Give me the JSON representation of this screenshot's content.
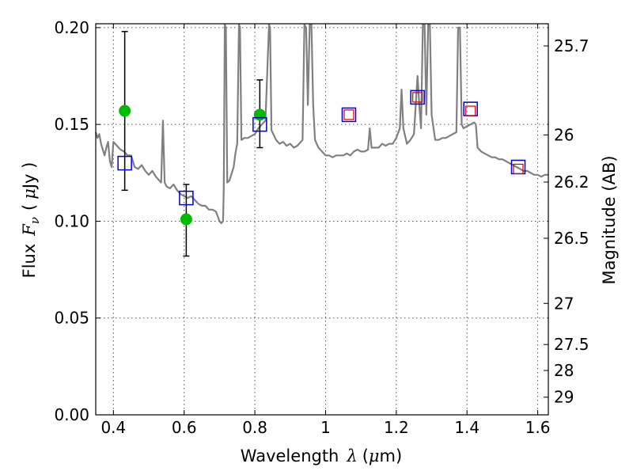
{
  "chart_data": {
    "type": "scatter",
    "title": "",
    "xlabel": {
      "prefix": "Wavelength",
      "symbol": "λ",
      "unit_open": "(",
      "unit_mu": "μ",
      "unit_rest": "m)"
    },
    "ylabel": {
      "prefix": "Flux",
      "symbol": "F",
      "sub": "ν",
      "unit_open": "(",
      "unit_mu": "μ",
      "unit_rest": "Jy )"
    },
    "y2label": "Magnitude (AB)",
    "xlim": [
      0.35,
      1.63
    ],
    "ylim": [
      0.0,
      0.202
    ],
    "grid": true,
    "xticks": [
      {
        "value": 0.4,
        "label": "0.4"
      },
      {
        "value": 0.6,
        "label": "0.6"
      },
      {
        "value": 0.8,
        "label": "0.8"
      },
      {
        "value": 1.0,
        "label": "1"
      },
      {
        "value": 1.2,
        "label": "1.2"
      },
      {
        "value": 1.4,
        "label": "1.4"
      },
      {
        "value": 1.6,
        "label": "1.6"
      }
    ],
    "yticks": [
      {
        "value": 0.0,
        "label": "0.00"
      },
      {
        "value": 0.05,
        "label": "0.05"
      },
      {
        "value": 0.1,
        "label": "0.10"
      },
      {
        "value": 0.15,
        "label": "0.15"
      },
      {
        "value": 0.2,
        "label": "0.20"
      }
    ],
    "y2ticks": [
      {
        "value": 25.7,
        "label": "25.7"
      },
      {
        "value": 26.0,
        "label": "26"
      },
      {
        "value": 26.2,
        "label": "26.2"
      },
      {
        "value": 26.5,
        "label": "26.5"
      },
      {
        "value": 27.0,
        "label": "27"
      },
      {
        "value": 27.5,
        "label": "27.5"
      },
      {
        "value": 28.0,
        "label": "28"
      },
      {
        "value": 29.0,
        "label": "29"
      }
    ],
    "colors": {
      "model": "#808080",
      "observed": "#00bb00",
      "model_box": "#0000cc",
      "predicted": "#cc0000",
      "grid": "#555555"
    },
    "series": [
      {
        "style": "line",
        "points": [
          [
            0.35,
            0.146
          ],
          [
            0.355,
            0.143
          ],
          [
            0.36,
            0.145
          ],
          [
            0.365,
            0.14
          ],
          [
            0.37,
            0.137
          ],
          [
            0.375,
            0.134
          ],
          [
            0.38,
            0.138
          ],
          [
            0.385,
            0.141
          ],
          [
            0.39,
            0.131
          ],
          [
            0.395,
            0.128
          ],
          [
            0.4,
            0.141
          ],
          [
            0.41,
            0.139
          ],
          [
            0.42,
            0.137
          ],
          [
            0.43,
            0.136
          ],
          [
            0.44,
            0.134
          ],
          [
            0.45,
            0.134
          ],
          [
            0.46,
            0.128
          ],
          [
            0.47,
            0.127
          ],
          [
            0.48,
            0.129
          ],
          [
            0.49,
            0.126
          ],
          [
            0.5,
            0.124
          ],
          [
            0.51,
            0.126
          ],
          [
            0.52,
            0.123
          ],
          [
            0.53,
            0.121
          ],
          [
            0.535,
            0.12
          ],
          [
            0.54,
            0.152
          ],
          [
            0.545,
            0.12
          ],
          [
            0.55,
            0.118
          ],
          [
            0.56,
            0.117
          ],
          [
            0.57,
            0.119
          ],
          [
            0.58,
            0.116
          ],
          [
            0.59,
            0.114
          ],
          [
            0.6,
            0.113
          ],
          [
            0.61,
            0.112
          ],
          [
            0.62,
            0.113
          ],
          [
            0.63,
            0.111
          ],
          [
            0.64,
            0.109
          ],
          [
            0.65,
            0.108
          ],
          [
            0.66,
            0.108
          ],
          [
            0.67,
            0.106
          ],
          [
            0.68,
            0.106
          ],
          [
            0.69,
            0.105
          ],
          [
            0.7,
            0.1
          ],
          [
            0.705,
            0.099
          ],
          [
            0.71,
            0.1
          ],
          [
            0.712,
            0.117
          ],
          [
            0.715,
            0.202
          ],
          [
            0.718,
            0.2
          ],
          [
            0.722,
            0.12
          ],
          [
            0.728,
            0.121
          ],
          [
            0.735,
            0.125
          ],
          [
            0.74,
            0.128
          ],
          [
            0.745,
            0.135
          ],
          [
            0.75,
            0.14
          ],
          [
            0.755,
            0.202
          ],
          [
            0.758,
            0.2
          ],
          [
            0.762,
            0.142
          ],
          [
            0.77,
            0.143
          ],
          [
            0.78,
            0.143
          ],
          [
            0.79,
            0.144
          ],
          [
            0.8,
            0.145
          ],
          [
            0.81,
            0.148
          ],
          [
            0.82,
            0.15
          ],
          [
            0.83,
            0.152
          ],
          [
            0.84,
            0.202
          ],
          [
            0.843,
            0.2
          ],
          [
            0.847,
            0.147
          ],
          [
            0.86,
            0.142
          ],
          [
            0.87,
            0.14
          ],
          [
            0.88,
            0.141
          ],
          [
            0.89,
            0.139
          ],
          [
            0.9,
            0.14
          ],
          [
            0.91,
            0.138
          ],
          [
            0.92,
            0.139
          ],
          [
            0.93,
            0.141
          ],
          [
            0.935,
            0.142
          ],
          [
            0.94,
            0.202
          ],
          [
            0.945,
            0.2
          ],
          [
            0.95,
            0.16
          ],
          [
            0.955,
            0.202
          ],
          [
            0.96,
            0.202
          ],
          [
            0.965,
            0.16
          ],
          [
            0.97,
            0.142
          ],
          [
            0.98,
            0.138
          ],
          [
            0.99,
            0.136
          ],
          [
            1.0,
            0.134
          ],
          [
            1.01,
            0.134
          ],
          [
            1.02,
            0.133
          ],
          [
            1.03,
            0.134
          ],
          [
            1.04,
            0.134
          ],
          [
            1.05,
            0.134
          ],
          [
            1.06,
            0.135
          ],
          [
            1.07,
            0.134
          ],
          [
            1.08,
            0.136
          ],
          [
            1.09,
            0.137
          ],
          [
            1.1,
            0.136
          ],
          [
            1.11,
            0.136
          ],
          [
            1.12,
            0.137
          ],
          [
            1.125,
            0.148
          ],
          [
            1.13,
            0.138
          ],
          [
            1.14,
            0.138
          ],
          [
            1.15,
            0.138
          ],
          [
            1.16,
            0.14
          ],
          [
            1.17,
            0.139
          ],
          [
            1.18,
            0.14
          ],
          [
            1.19,
            0.14
          ],
          [
            1.2,
            0.143
          ],
          [
            1.21,
            0.148
          ],
          [
            1.215,
            0.168
          ],
          [
            1.22,
            0.148
          ],
          [
            1.23,
            0.14
          ],
          [
            1.24,
            0.142
          ],
          [
            1.25,
            0.145
          ],
          [
            1.255,
            0.16
          ],
          [
            1.26,
            0.175
          ],
          [
            1.265,
            0.16
          ],
          [
            1.27,
            0.148
          ],
          [
            1.275,
            0.202
          ],
          [
            1.28,
            0.202
          ],
          [
            1.285,
            0.155
          ],
          [
            1.29,
            0.202
          ],
          [
            1.295,
            0.202
          ],
          [
            1.3,
            0.155
          ],
          [
            1.31,
            0.142
          ],
          [
            1.32,
            0.142
          ],
          [
            1.33,
            0.143
          ],
          [
            1.34,
            0.143
          ],
          [
            1.35,
            0.144
          ],
          [
            1.36,
            0.145
          ],
          [
            1.37,
            0.146
          ],
          [
            1.375,
            0.2
          ],
          [
            1.38,
            0.2
          ],
          [
            1.385,
            0.15
          ],
          [
            1.39,
            0.148
          ],
          [
            1.4,
            0.149
          ],
          [
            1.41,
            0.15
          ],
          [
            1.42,
            0.151
          ],
          [
            1.425,
            0.15
          ],
          [
            1.43,
            0.138
          ],
          [
            1.44,
            0.136
          ],
          [
            1.45,
            0.135
          ],
          [
            1.46,
            0.134
          ],
          [
            1.47,
            0.133
          ],
          [
            1.48,
            0.133
          ],
          [
            1.49,
            0.132
          ],
          [
            1.5,
            0.132
          ],
          [
            1.51,
            0.131
          ],
          [
            1.52,
            0.13
          ],
          [
            1.53,
            0.129
          ],
          [
            1.54,
            0.128
          ],
          [
            1.55,
            0.127
          ],
          [
            1.56,
            0.126
          ],
          [
            1.57,
            0.126
          ],
          [
            1.58,
            0.125
          ],
          [
            1.59,
            0.124
          ],
          [
            1.6,
            0.124
          ],
          [
            1.61,
            0.123
          ],
          [
            1.62,
            0.124
          ],
          [
            1.63,
            0.124
          ]
        ]
      },
      {
        "style": "errorbar",
        "points": [
          {
            "x": 0.432,
            "y": 0.157,
            "ylo": 0.116,
            "yhi": 0.198
          },
          {
            "x": 0.606,
            "y": 0.101,
            "ylo": 0.082,
            "yhi": 0.119
          },
          {
            "x": 0.814,
            "y": 0.155,
            "ylo": 0.138,
            "yhi": 0.173
          }
        ]
      },
      {
        "style": "open-square",
        "points": [
          [
            0.432,
            0.13
          ],
          [
            0.606,
            0.112
          ],
          [
            0.814,
            0.15
          ],
          [
            1.066,
            0.155
          ],
          [
            1.26,
            0.164
          ],
          [
            1.41,
            0.158
          ],
          [
            1.545,
            0.128
          ]
        ]
      },
      {
        "style": "open-square-small",
        "points": [
          [
            1.066,
            0.155
          ],
          [
            1.26,
            0.164
          ],
          [
            1.41,
            0.157
          ],
          [
            1.545,
            0.127
          ]
        ]
      }
    ]
  }
}
